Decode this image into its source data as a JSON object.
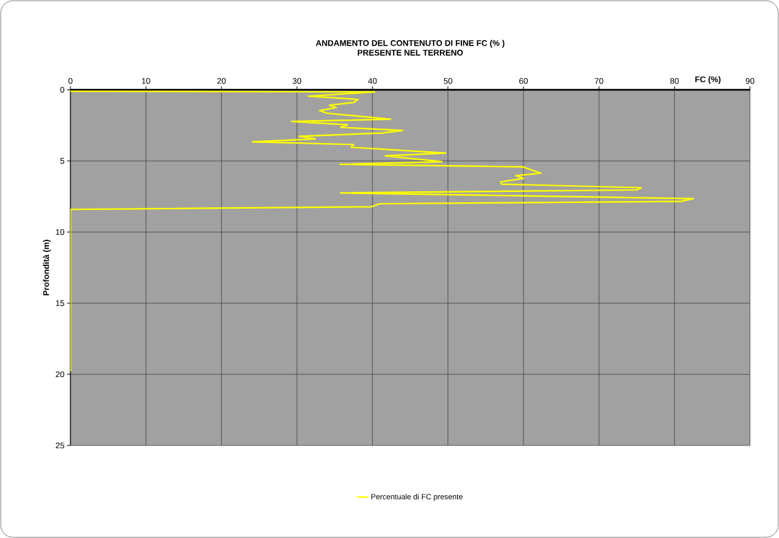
{
  "chart_data": {
    "type": "line",
    "title": "ANDAMENTO DEL CONTENUTO DI FINE FC (% )",
    "subtitle": "PRESENTE NEL TERRENO",
    "xlabel": "FC (%)",
    "ylabel": "Profondità (m)",
    "xlim": [
      0,
      90
    ],
    "xticks": [
      0,
      10,
      20,
      30,
      40,
      50,
      60,
      70,
      80,
      90
    ],
    "ylim": [
      25,
      0
    ],
    "yticks": [
      0,
      5,
      10,
      15,
      20,
      25
    ],
    "grid": true,
    "legend": "bottom",
    "series": [
      {
        "name": "Percentuale di FC presente",
        "color": "#ffff00",
        "x": [
          0,
          40.3,
          31.5,
          38.1,
          37.5,
          34.3,
          35.2,
          33.0,
          34.0,
          42.4,
          29.3,
          36.7,
          35.8,
          44.0,
          41.3,
          30.3,
          32.4,
          24.1,
          37.5,
          37.2,
          49.7,
          41.7,
          49.2,
          35.7,
          59.9,
          62.3,
          59.0,
          60.0,
          57.0,
          57.1,
          75.6,
          75.0,
          35.8,
          82.5,
          80.8,
          41.0,
          39.9,
          0,
          0
        ],
        "values": [
          0.1,
          0.15,
          0.45,
          0.68,
          0.89,
          1.08,
          1.25,
          1.46,
          1.65,
          2.07,
          2.23,
          2.46,
          2.64,
          2.86,
          3.04,
          3.27,
          3.45,
          3.66,
          3.85,
          4.04,
          4.45,
          4.64,
          5.05,
          5.24,
          5.42,
          5.86,
          6.04,
          6.23,
          6.47,
          6.63,
          6.88,
          7.04,
          7.25,
          7.65,
          7.85,
          8.01,
          8.22,
          8.41,
          19.8
        ]
      }
    ]
  }
}
